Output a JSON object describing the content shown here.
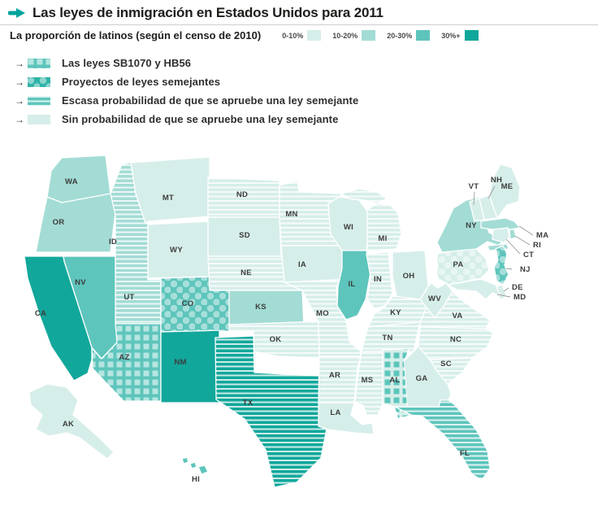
{
  "header": {
    "title": "Las leyes de inmigración en Estados Unidos para 2011",
    "arrow_icon": "right-arrow",
    "accent_color": "#00a39c"
  },
  "proportion_legend": {
    "title": "La proporción de latinos (según el censo de 2010)",
    "buckets": [
      {
        "key": "0-10",
        "label": "0-10%",
        "color": "#d6eeea"
      },
      {
        "key": "10-20",
        "label": "10-20%",
        "color": "#a3dcd5"
      },
      {
        "key": "20-30",
        "label": "20-30%",
        "color": "#5ec5bc"
      },
      {
        "key": "30+",
        "label": "30%+",
        "color": "#12a79b"
      }
    ]
  },
  "status_legend": [
    {
      "key": "ley",
      "label": "Las leyes SB1070 y HB56",
      "pattern": "checker",
      "swatch_color": "#5ec5bc"
    },
    {
      "key": "proyecto",
      "label": "Proyectos de leyes semejantes",
      "pattern": "dots",
      "swatch_color": "#2fb2a7"
    },
    {
      "key": "escasa",
      "label": "Escasa probabilidad de que se apruebe una ley semejante",
      "pattern": "stripes",
      "swatch_color": "#5ec5bc"
    },
    {
      "key": "sin",
      "label": "Sin probabilidad de que se apruebe una ley semejante",
      "pattern": "none",
      "swatch_color": "#d6eeea"
    }
  ],
  "map": {
    "states": [
      {
        "id": "WA",
        "label": "WA",
        "latino_pct": "10-20",
        "status": "sin"
      },
      {
        "id": "OR",
        "label": "OR",
        "latino_pct": "10-20",
        "status": "sin"
      },
      {
        "id": "CA",
        "label": "CA",
        "latino_pct": "30+",
        "status": "sin"
      },
      {
        "id": "NV",
        "label": "NV",
        "latino_pct": "20-30",
        "status": "sin"
      },
      {
        "id": "ID",
        "label": "ID",
        "latino_pct": "10-20",
        "status": "escasa"
      },
      {
        "id": "MT",
        "label": "MT",
        "latino_pct": "0-10",
        "status": "sin"
      },
      {
        "id": "WY",
        "label": "WY",
        "latino_pct": "0-10",
        "status": "sin"
      },
      {
        "id": "UT",
        "label": "UT",
        "latino_pct": "10-20",
        "status": "escasa"
      },
      {
        "id": "AZ",
        "label": "AZ",
        "latino_pct": "20-30",
        "status": "ley"
      },
      {
        "id": "CO",
        "label": "CO",
        "latino_pct": "20-30",
        "status": "proyecto"
      },
      {
        "id": "NM",
        "label": "NM",
        "latino_pct": "30+",
        "status": "sin"
      },
      {
        "id": "ND",
        "label": "ND",
        "latino_pct": "0-10",
        "status": "escasa"
      },
      {
        "id": "SD",
        "label": "SD",
        "latino_pct": "0-10",
        "status": "sin"
      },
      {
        "id": "NE",
        "label": "NE",
        "latino_pct": "0-10",
        "status": "escasa"
      },
      {
        "id": "KS",
        "label": "KS",
        "latino_pct": "10-20",
        "status": "sin"
      },
      {
        "id": "OK",
        "label": "OK",
        "latino_pct": "0-10",
        "status": "escasa"
      },
      {
        "id": "TX",
        "label": "TX",
        "latino_pct": "30+",
        "status": "escasa"
      },
      {
        "id": "MN",
        "label": "MN",
        "latino_pct": "0-10",
        "status": "escasa"
      },
      {
        "id": "IA",
        "label": "IA",
        "latino_pct": "0-10",
        "status": "sin"
      },
      {
        "id": "MO",
        "label": "MO",
        "latino_pct": "0-10",
        "status": "escasa"
      },
      {
        "id": "AR",
        "label": "AR",
        "latino_pct": "0-10",
        "status": "escasa"
      },
      {
        "id": "LA",
        "label": "LA",
        "latino_pct": "0-10",
        "status": "sin"
      },
      {
        "id": "WI",
        "label": "WI",
        "latino_pct": "0-10",
        "status": "sin"
      },
      {
        "id": "IL",
        "label": "IL",
        "latino_pct": "20-30",
        "status": "sin"
      },
      {
        "id": "IN",
        "label": "IN",
        "latino_pct": "0-10",
        "status": "escasa"
      },
      {
        "id": "MI",
        "label": "MI",
        "latino_pct": "0-10",
        "status": "escasa"
      },
      {
        "id": "OH",
        "label": "OH",
        "latino_pct": "0-10",
        "status": "sin"
      },
      {
        "id": "KY",
        "label": "KY",
        "latino_pct": "0-10",
        "status": "escasa"
      },
      {
        "id": "TN",
        "label": "TN",
        "latino_pct": "0-10",
        "status": "escasa"
      },
      {
        "id": "WV",
        "label": "WV",
        "latino_pct": "0-10",
        "status": "sin"
      },
      {
        "id": "VA",
        "label": "VA",
        "latino_pct": "0-10",
        "status": "escasa"
      },
      {
        "id": "NC",
        "label": "NC",
        "latino_pct": "0-10",
        "status": "escasa"
      },
      {
        "id": "SC",
        "label": "SC",
        "latino_pct": "0-10",
        "status": "escasa"
      },
      {
        "id": "GA",
        "label": "GA",
        "latino_pct": "0-10",
        "status": "sin"
      },
      {
        "id": "AL",
        "label": "AL",
        "latino_pct": "0-10",
        "status": "ley"
      },
      {
        "id": "MS",
        "label": "MS",
        "latino_pct": "0-10",
        "status": "escasa"
      },
      {
        "id": "FL",
        "label": "FL",
        "latino_pct": "20-30",
        "status": "escasa"
      },
      {
        "id": "PA",
        "label": "PA",
        "latino_pct": "0-10",
        "status": "proyecto"
      },
      {
        "id": "NY",
        "label": "NY",
        "latino_pct": "10-20",
        "status": "sin"
      },
      {
        "id": "NJ",
        "label": "NJ",
        "latino_pct": "20-30",
        "status": "proyecto"
      },
      {
        "id": "VT",
        "label": "VT",
        "latino_pct": "0-10",
        "status": "sin"
      },
      {
        "id": "NH",
        "label": "NH",
        "latino_pct": "0-10",
        "status": "sin"
      },
      {
        "id": "ME",
        "label": "ME",
        "latino_pct": "0-10",
        "status": "sin"
      },
      {
        "id": "MA",
        "label": "MA",
        "latino_pct": "10-20",
        "status": "sin"
      },
      {
        "id": "RI",
        "label": "RI",
        "latino_pct": "10-20",
        "status": "sin"
      },
      {
        "id": "CT",
        "label": "CT",
        "latino_pct": "0-10",
        "status": "sin"
      },
      {
        "id": "DE",
        "label": "DE",
        "latino_pct": "0-10",
        "status": "sin"
      },
      {
        "id": "MD",
        "label": "MD",
        "latino_pct": "0-10",
        "status": "sin"
      },
      {
        "id": "AK",
        "label": "AK",
        "latino_pct": "0-10",
        "status": "sin"
      },
      {
        "id": "HI",
        "label": "HI",
        "latino_pct": "20-30",
        "status": "sin"
      }
    ]
  }
}
